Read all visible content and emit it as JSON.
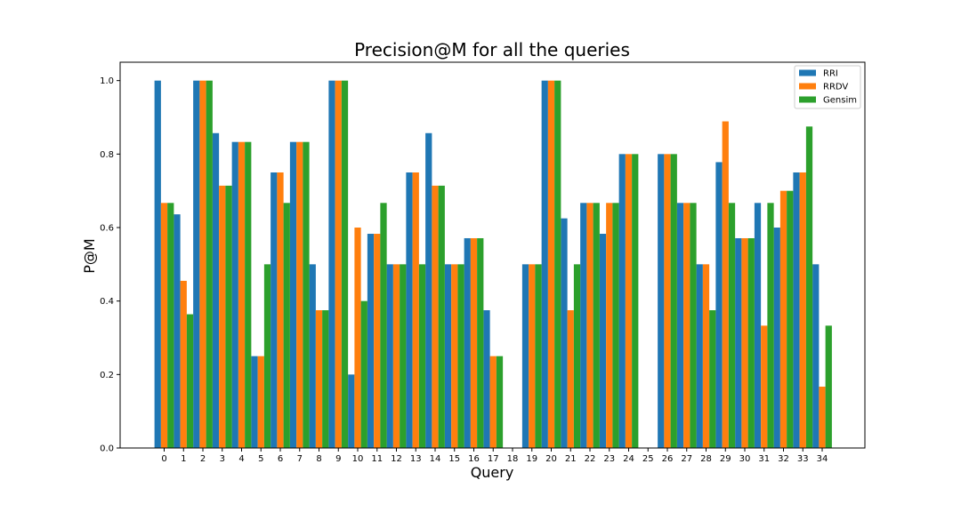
{
  "chart_data": {
    "type": "bar",
    "title": "Precision@M for all the queries",
    "xlabel": "Query",
    "ylabel": "P@M",
    "ylim": [
      0,
      1.05
    ],
    "yticks": [
      "0.0",
      "0.2",
      "0.4",
      "0.6",
      "0.8",
      "1.0"
    ],
    "categories": [
      "0",
      "1",
      "2",
      "3",
      "4",
      "5",
      "6",
      "7",
      "8",
      "9",
      "10",
      "11",
      "12",
      "13",
      "14",
      "15",
      "16",
      "17",
      "18",
      "19",
      "20",
      "21",
      "22",
      "23",
      "24",
      "25",
      "26",
      "27",
      "28",
      "29",
      "30",
      "31",
      "32",
      "33",
      "34"
    ],
    "legend_position": "top-right",
    "grid": false,
    "series": [
      {
        "name": "RRI",
        "color": "#1f77b4",
        "values": [
          1.0,
          0.636,
          1.0,
          0.857,
          0.833,
          0.25,
          0.75,
          0.833,
          0.5,
          1.0,
          0.2,
          0.583,
          0.5,
          0.75,
          0.857,
          0.5,
          0.571,
          0.375,
          0,
          0.5,
          1.0,
          0.625,
          0.667,
          0.583,
          0.8,
          0,
          0.8,
          0.667,
          0.5,
          0.778,
          0.571,
          0.667,
          0.6,
          0.75,
          0.5
        ]
      },
      {
        "name": "RRDV",
        "color": "#ff7f0e",
        "values": [
          0.667,
          0.455,
          1.0,
          0.714,
          0.833,
          0.25,
          0.75,
          0.833,
          0.375,
          1.0,
          0.6,
          0.583,
          0.5,
          0.75,
          0.714,
          0.5,
          0.571,
          0.25,
          0,
          0.5,
          1.0,
          0.375,
          0.667,
          0.667,
          0.8,
          0,
          0.8,
          0.667,
          0.5,
          0.889,
          0.571,
          0.333,
          0.7,
          0.75,
          0.167
        ]
      },
      {
        "name": "Gensim",
        "color": "#2ca02c",
        "values": [
          0.667,
          0.364,
          1.0,
          0.714,
          0.833,
          0.5,
          0.667,
          0.833,
          0.375,
          1.0,
          0.4,
          0.667,
          0.5,
          0.5,
          0.714,
          0.5,
          0.571,
          0.25,
          0,
          0.5,
          1.0,
          0.5,
          0.667,
          0.667,
          0.8,
          0,
          0.8,
          0.667,
          0.375,
          0.667,
          0.571,
          0.667,
          0.7,
          0.875,
          0.333
        ]
      }
    ]
  }
}
